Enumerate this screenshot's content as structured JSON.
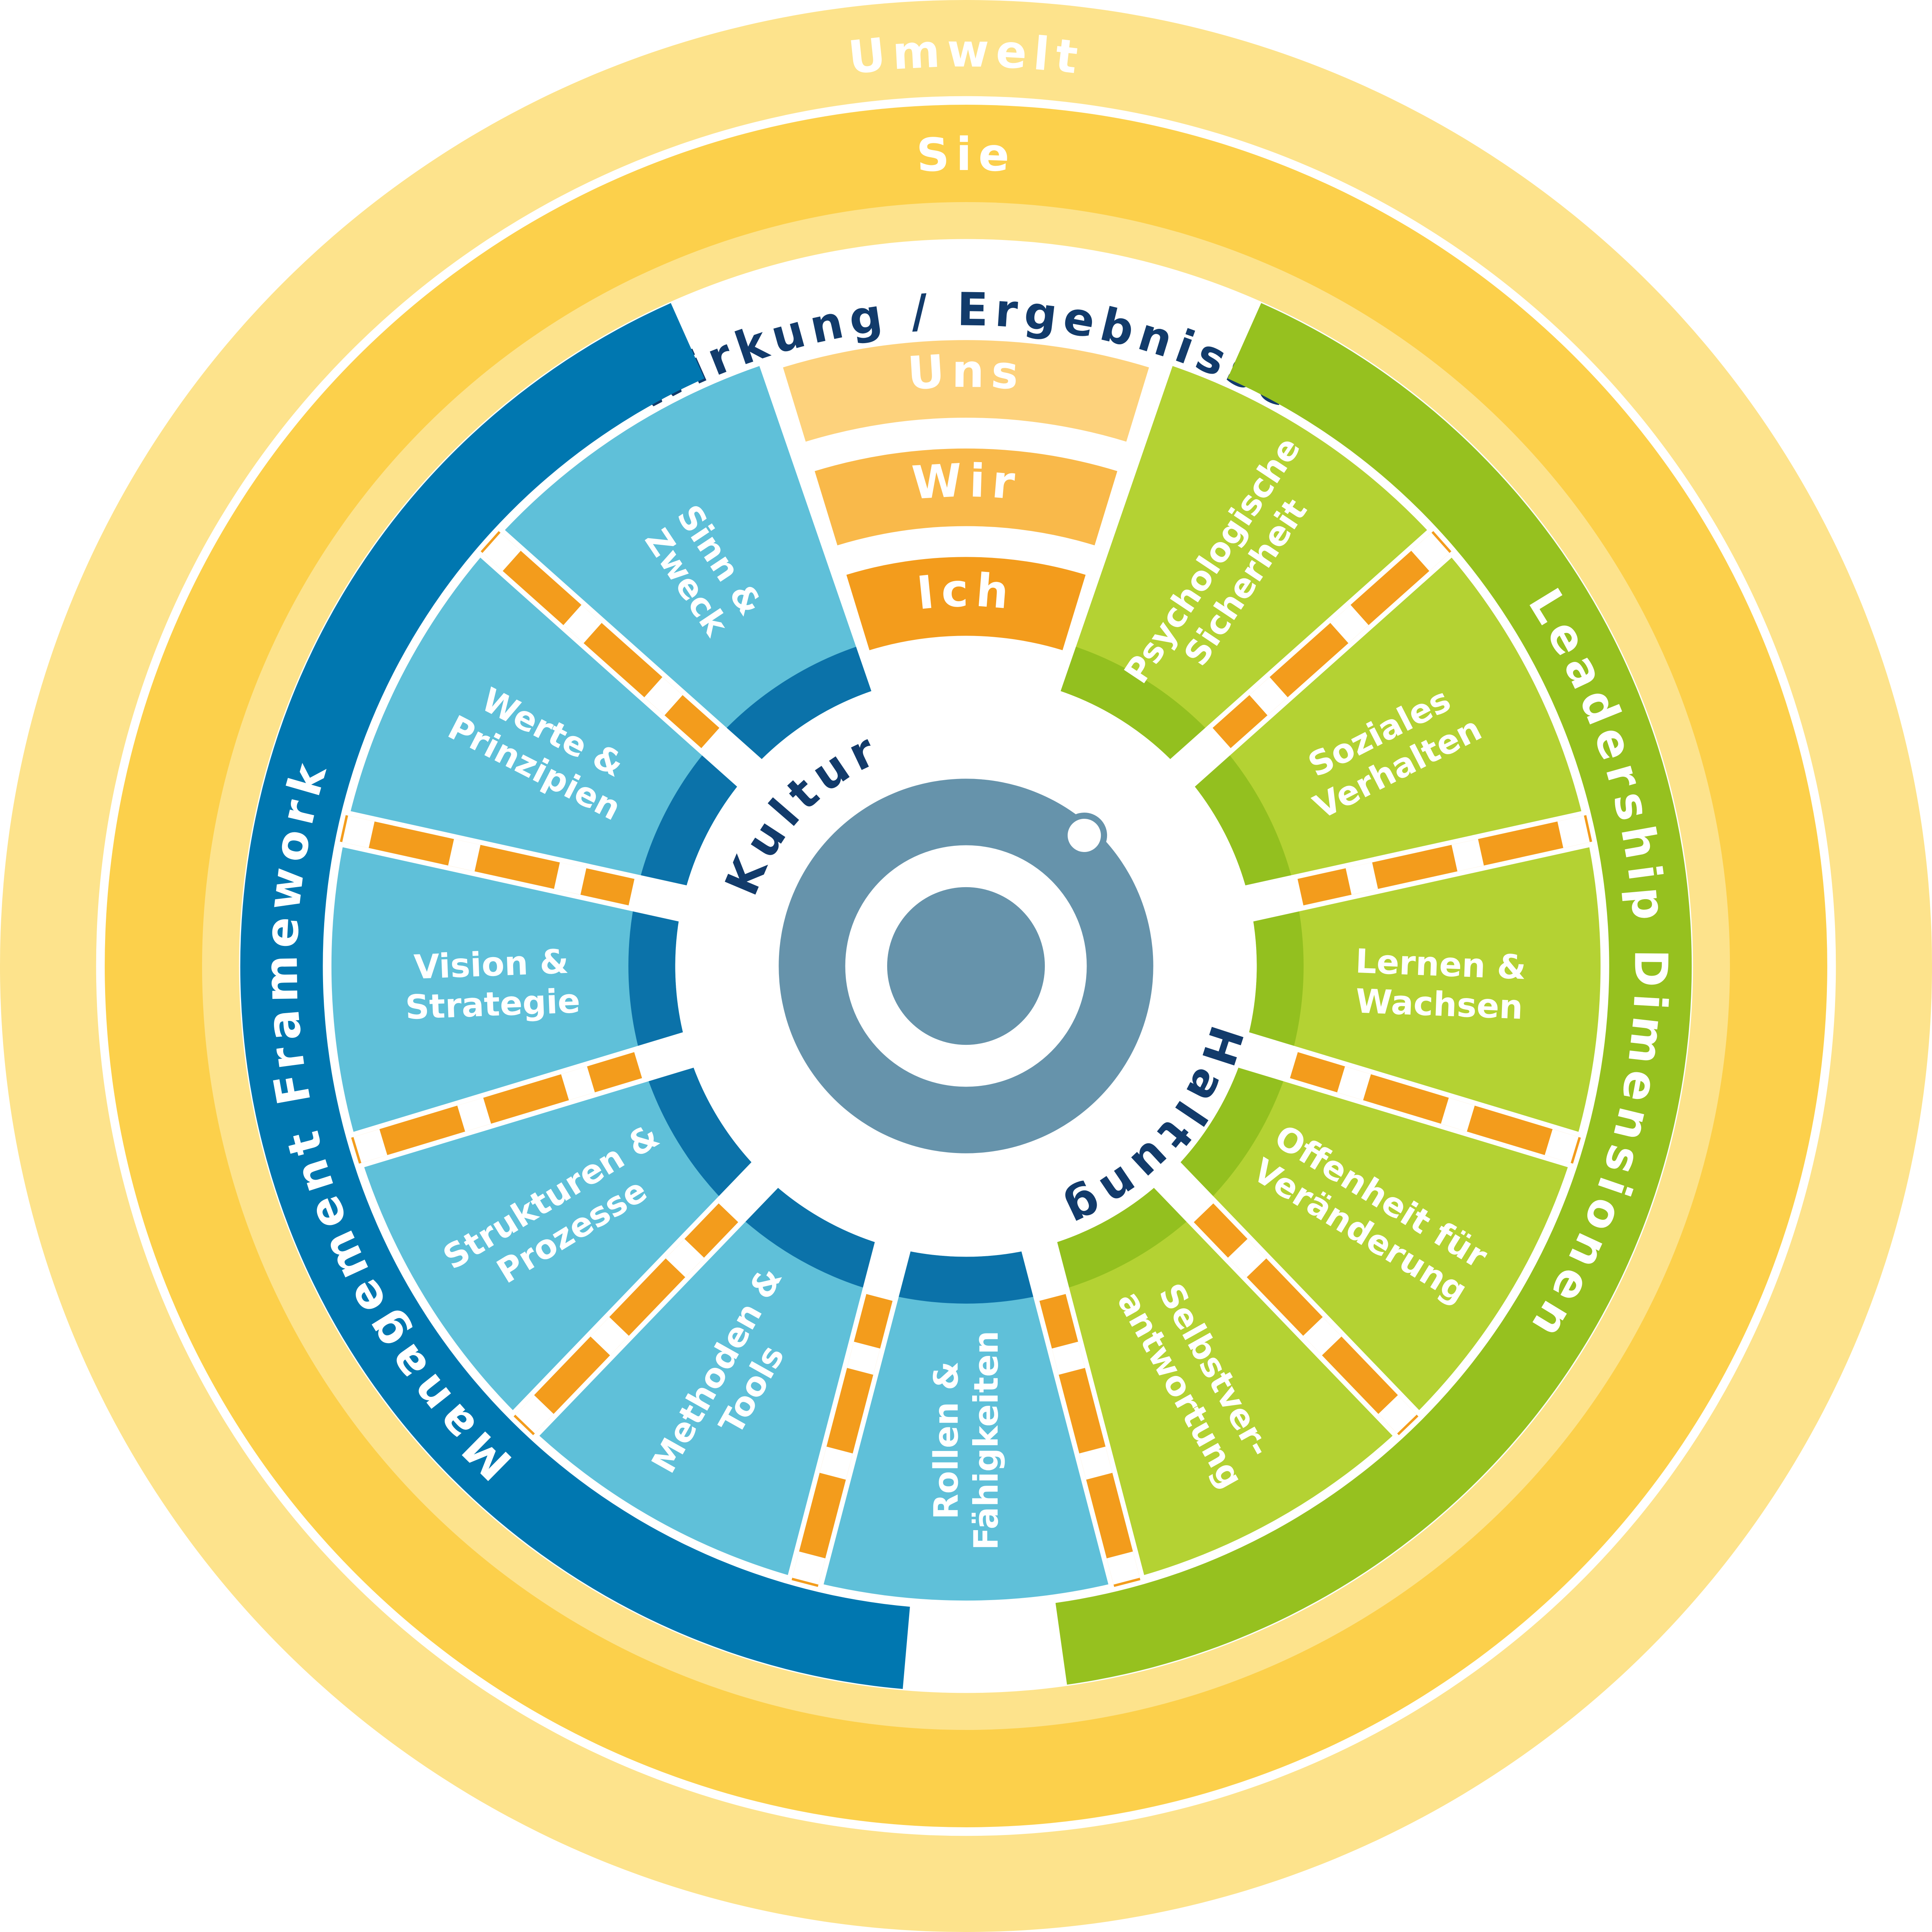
{
  "rings": {
    "outer": "Umwelt",
    "middle": "Sie",
    "inner": "Wirkung / Ergebnisse"
  },
  "arcs": {
    "left": "Management Framework",
    "right": "Leadership Dimensionen"
  },
  "levels": [
    "Uns",
    "Wir",
    "Ich"
  ],
  "center": {
    "top": "Kultur",
    "bottom": "Haltung"
  },
  "leadership_segments": [
    [
      "Psychologische",
      "Sicherheit"
    ],
    [
      "Soziales",
      "Verhalten"
    ],
    [
      "Lernen &",
      "Wachsen"
    ],
    [
      "Offenheit für",
      "Veränderung"
    ],
    [
      "Selbstver-",
      "antwortung"
    ]
  ],
  "management_segments": [
    [
      "Rollen &",
      "Fähigkeiten"
    ],
    [
      "Methoden &",
      "Tools"
    ],
    [
      "Strukturen &",
      "Prozesse"
    ],
    [
      "Vision &",
      "Strategie"
    ],
    [
      "Werte &",
      "Prinzipien"
    ],
    [
      "Sinn &",
      "Zweck"
    ]
  ]
}
